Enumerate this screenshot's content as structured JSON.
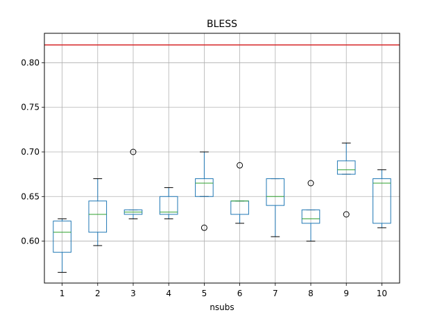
{
  "chart_data": {
    "type": "box",
    "title": "BLESS",
    "xlabel": "nsubs",
    "ylabel": "",
    "categories": [
      "1",
      "2",
      "3",
      "4",
      "5",
      "6",
      "7",
      "8",
      "9",
      "10"
    ],
    "ylim": [
      0.553,
      0.833
    ],
    "yticks": [
      0.6,
      0.65,
      0.7,
      0.75,
      0.8
    ],
    "ytick_labels": [
      "0.60",
      "0.65",
      "0.70",
      "0.75",
      "0.80"
    ],
    "grid": true,
    "reference_line": {
      "y": 0.82,
      "color": "#d62728"
    },
    "colors": {
      "box": "#1f77b4",
      "median": "#2ca02c",
      "whisker": "#1f77b4",
      "cap": "#000000",
      "grid": "#b0b0b0"
    },
    "boxes": [
      {
        "label": "1",
        "whislo": 0.565,
        "q1": 0.5875,
        "med": 0.61,
        "q3": 0.6225,
        "whishi": 0.625,
        "fliers": []
      },
      {
        "label": "2",
        "whislo": 0.595,
        "q1": 0.61,
        "med": 0.63,
        "q3": 0.645,
        "whishi": 0.67,
        "fliers": []
      },
      {
        "label": "3",
        "whislo": 0.625,
        "q1": 0.63,
        "med": 0.6325,
        "q3": 0.635,
        "whishi": 0.635,
        "fliers": [
          0.7
        ]
      },
      {
        "label": "4",
        "whislo": 0.625,
        "q1": 0.63,
        "med": 0.6325,
        "q3": 0.65,
        "whishi": 0.66,
        "fliers": []
      },
      {
        "label": "5",
        "whislo": 0.65,
        "q1": 0.65,
        "med": 0.665,
        "q3": 0.67,
        "whishi": 0.7,
        "fliers": [
          0.615
        ]
      },
      {
        "label": "6",
        "whislo": 0.62,
        "q1": 0.63,
        "med": 0.645,
        "q3": 0.645,
        "whishi": 0.645,
        "fliers": [
          0.685
        ]
      },
      {
        "label": "7",
        "whislo": 0.605,
        "q1": 0.64,
        "med": 0.65,
        "q3": 0.67,
        "whishi": 0.67,
        "fliers": []
      },
      {
        "label": "8",
        "whislo": 0.6,
        "q1": 0.62,
        "med": 0.625,
        "q3": 0.635,
        "whishi": 0.635,
        "fliers": [
          0.665
        ]
      },
      {
        "label": "9",
        "whislo": 0.675,
        "q1": 0.675,
        "med": 0.68,
        "q3": 0.69,
        "whishi": 0.71,
        "fliers": [
          0.63
        ]
      },
      {
        "label": "10",
        "whislo": 0.615,
        "q1": 0.62,
        "med": 0.665,
        "q3": 0.67,
        "whishi": 0.68,
        "fliers": []
      }
    ]
  }
}
